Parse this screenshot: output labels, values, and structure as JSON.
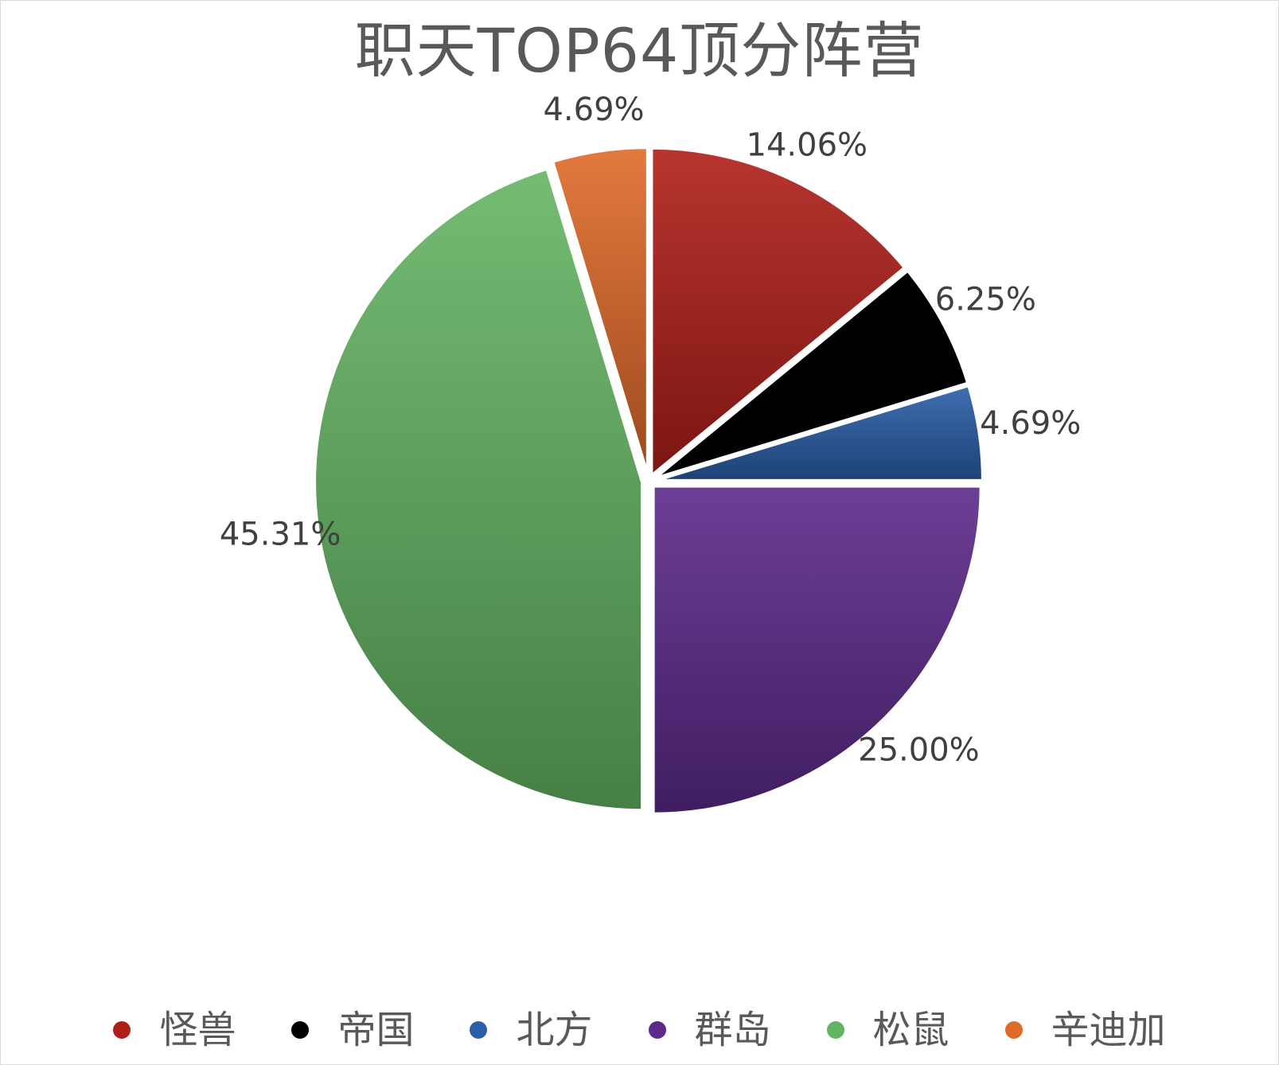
{
  "chart_data": {
    "type": "pie",
    "title": "职天TOP64顶分阵营",
    "categories": [
      "怪兽",
      "帝国",
      "北方",
      "群岛",
      "松鼠",
      "辛迪加"
    ],
    "values": [
      14.06,
      6.25,
      4.69,
      25.0,
      45.31,
      4.69
    ],
    "data_labels": [
      "14.06%",
      "6.25%",
      "4.69%",
      "25.00%",
      "45.31%",
      "4.69%"
    ],
    "colors": [
      "#b01e18",
      "#000000",
      "#2a5ea8",
      "#5c2a8a",
      "#64b563",
      "#e06a2a"
    ],
    "legend_position": "bottom",
    "exploded": true
  }
}
